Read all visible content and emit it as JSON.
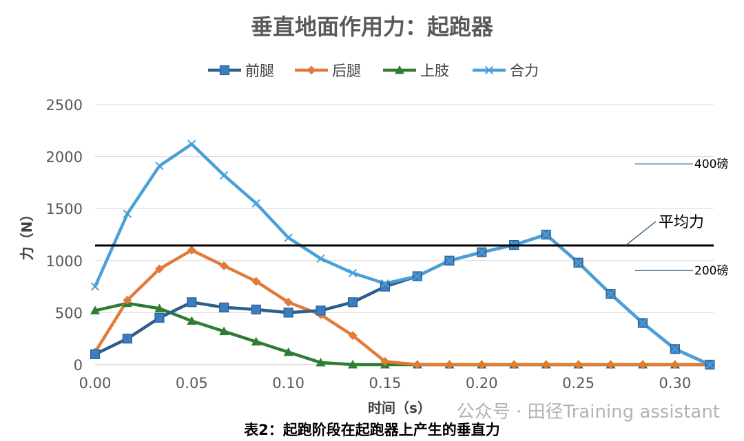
{
  "chart_data": {
    "type": "line",
    "title": "垂直地面作用力：起跑器",
    "xlabel": "时间（s）",
    "ylabel": "力（N）",
    "xlim": [
      0,
      0.32
    ],
    "ylim": [
      0,
      2500
    ],
    "x_ticks": [
      "0.00",
      "0.05",
      "0.10",
      "0.15",
      "0.20",
      "0.25",
      "0.30"
    ],
    "y_ticks": [
      "0",
      "500",
      "1000",
      "1500",
      "2000",
      "2500"
    ],
    "grid": "horizontal",
    "legend_position": "top",
    "series": [
      {
        "name": "前腿",
        "color": "#2e5f8a",
        "marker": "square",
        "points": [
          [
            0.0,
            100
          ],
          [
            0.0167,
            250
          ],
          [
            0.0333,
            450
          ],
          [
            0.05,
            600
          ],
          [
            0.0667,
            550
          ],
          [
            0.0833,
            530
          ],
          [
            0.1,
            500
          ],
          [
            0.1167,
            520
          ],
          [
            0.1333,
            600
          ],
          [
            0.15,
            750
          ],
          [
            0.1667,
            850
          ],
          [
            0.1833,
            1000
          ],
          [
            0.2,
            1080
          ],
          [
            0.2167,
            1150
          ],
          [
            0.2333,
            1250
          ],
          [
            0.25,
            980
          ],
          [
            0.2667,
            680
          ],
          [
            0.2833,
            400
          ],
          [
            0.3,
            150
          ],
          [
            0.318,
            0
          ]
        ]
      },
      {
        "name": "后腿",
        "color": "#e07b39",
        "marker": "diamond",
        "points": [
          [
            0.0,
            120
          ],
          [
            0.0167,
            620
          ],
          [
            0.0333,
            920
          ],
          [
            0.05,
            1100
          ],
          [
            0.0667,
            950
          ],
          [
            0.0833,
            800
          ],
          [
            0.1,
            600
          ],
          [
            0.1167,
            480
          ],
          [
            0.1333,
            280
          ],
          [
            0.15,
            30
          ],
          [
            0.1667,
            0
          ],
          [
            0.1833,
            0
          ],
          [
            0.2,
            0
          ],
          [
            0.2167,
            0
          ],
          [
            0.2333,
            0
          ],
          [
            0.25,
            0
          ],
          [
            0.2667,
            0
          ],
          [
            0.2833,
            0
          ],
          [
            0.3,
            0
          ],
          [
            0.318,
            0
          ]
        ]
      },
      {
        "name": "上肢",
        "color": "#2e7d32",
        "marker": "triangle",
        "points": [
          [
            0.0,
            520
          ],
          [
            0.0167,
            590
          ],
          [
            0.0333,
            540
          ],
          [
            0.05,
            420
          ],
          [
            0.0667,
            320
          ],
          [
            0.0833,
            220
          ],
          [
            0.1,
            120
          ],
          [
            0.1167,
            20
          ],
          [
            0.1333,
            0
          ],
          [
            0.15,
            0
          ],
          [
            0.1667,
            0
          ],
          [
            0.1833,
            0
          ],
          [
            0.2,
            0
          ],
          [
            0.2167,
            0
          ],
          [
            0.2333,
            0
          ],
          [
            0.25,
            0
          ],
          [
            0.2667,
            0
          ],
          [
            0.2833,
            0
          ],
          [
            0.3,
            0
          ],
          [
            0.318,
            0
          ]
        ]
      },
      {
        "name": "合力",
        "color": "#4a9fd8",
        "marker": "x",
        "points": [
          [
            0.0,
            750
          ],
          [
            0.0167,
            1450
          ],
          [
            0.0333,
            1910
          ],
          [
            0.05,
            2120
          ],
          [
            0.0667,
            1820
          ],
          [
            0.0833,
            1550
          ],
          [
            0.1,
            1220
          ],
          [
            0.1167,
            1020
          ],
          [
            0.1333,
            880
          ],
          [
            0.15,
            780
          ],
          [
            0.1667,
            850
          ],
          [
            0.1833,
            1000
          ],
          [
            0.2,
            1080
          ],
          [
            0.2167,
            1150
          ],
          [
            0.2333,
            1250
          ],
          [
            0.25,
            980
          ],
          [
            0.2667,
            680
          ],
          [
            0.2833,
            400
          ],
          [
            0.3,
            150
          ],
          [
            0.318,
            0
          ]
        ]
      }
    ],
    "reference_line": {
      "value": 1145,
      "label": "平均力",
      "color": "#000000"
    },
    "annotations": [
      {
        "text": "400磅",
        "y": 1930
      },
      {
        "text": "200磅",
        "y": 905
      }
    ]
  },
  "caption": "表2：起跑阶段在起跑器上产生的垂直力",
  "watermark": "公众号 · 田径Training assistant"
}
